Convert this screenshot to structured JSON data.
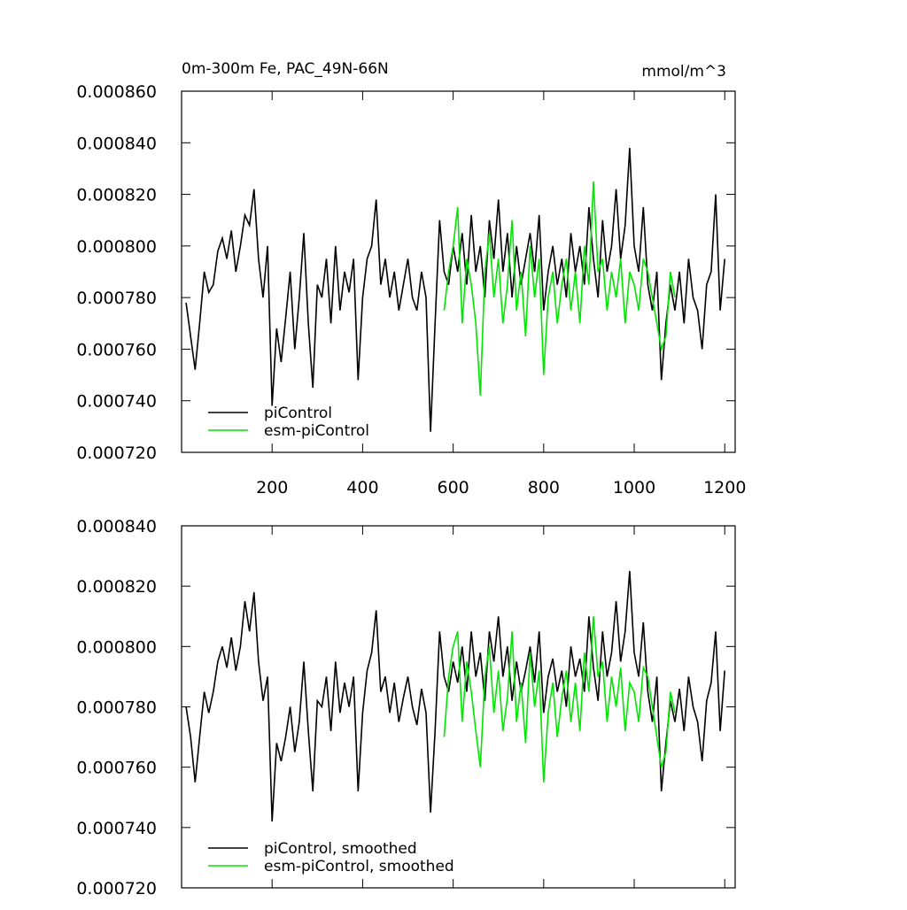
{
  "chart_data": [
    {
      "type": "line",
      "title": "0m-300m Fe, PAC_49N-66N",
      "units": "mmol/m^3",
      "xlim": [
        0,
        1223
      ],
      "xticks": [
        200,
        400,
        600,
        800,
        1000,
        1200
      ],
      "xtick_labels": true,
      "ylim": [
        0.00072,
        0.00086
      ],
      "yticks": [
        {
          "value": 0.00072,
          "label": "0.000720"
        },
        {
          "value": 0.00074,
          "label": "0.000740"
        },
        {
          "value": 0.00076,
          "label": "0.000760"
        },
        {
          "value": 0.00078,
          "label": "0.000780"
        },
        {
          "value": 0.0008,
          "label": "0.000800"
        },
        {
          "value": 0.00082,
          "label": "0.000820"
        },
        {
          "value": 0.00084,
          "label": "0.000840"
        },
        {
          "value": 0.00086,
          "label": "0.000860"
        }
      ],
      "legend": "lower left",
      "series": [
        {
          "name": "piControl",
          "color": "#000000",
          "x": [
            10,
            20,
            30,
            40,
            50,
            60,
            70,
            80,
            90,
            100,
            110,
            120,
            130,
            140,
            150,
            160,
            170,
            180,
            190,
            200,
            210,
            220,
            230,
            240,
            250,
            260,
            270,
            280,
            290,
            300,
            310,
            320,
            330,
            340,
            350,
            360,
            370,
            380,
            390,
            400,
            410,
            420,
            430,
            440,
            450,
            460,
            470,
            480,
            490,
            500,
            510,
            520,
            530,
            540,
            550,
            560,
            570,
            580,
            590,
            600,
            610,
            620,
            630,
            640,
            650,
            660,
            670,
            680,
            690,
            700,
            710,
            720,
            730,
            740,
            750,
            760,
            770,
            780,
            790,
            800,
            810,
            820,
            830,
            840,
            850,
            860,
            870,
            880,
            890,
            900,
            910,
            920,
            930,
            940,
            950,
            960,
            970,
            980,
            990,
            1000,
            1010,
            1020,
            1030,
            1040,
            1050,
            1060,
            1070,
            1080,
            1090,
            1100,
            1110,
            1120,
            1130,
            1140,
            1150,
            1160,
            1170,
            1180,
            1190,
            1200
          ],
          "values": [
            0.000778,
            0.000765,
            0.000752,
            0.00077,
            0.00079,
            0.000782,
            0.000785,
            0.000798,
            0.000803,
            0.000795,
            0.000806,
            0.00079,
            0.0008,
            0.000812,
            0.000808,
            0.000822,
            0.000795,
            0.00078,
            0.0008,
            0.000738,
            0.000768,
            0.000755,
            0.000772,
            0.00079,
            0.00076,
            0.00078,
            0.000805,
            0.00077,
            0.000745,
            0.000785,
            0.00078,
            0.000795,
            0.00077,
            0.0008,
            0.000775,
            0.00079,
            0.000782,
            0.000795,
            0.000748,
            0.00078,
            0.000795,
            0.0008,
            0.000818,
            0.000785,
            0.000795,
            0.00078,
            0.00079,
            0.000775,
            0.000785,
            0.000795,
            0.00078,
            0.000775,
            0.00079,
            0.00078,
            0.000728,
            0.00077,
            0.00081,
            0.00079,
            0.000785,
            0.0008,
            0.00079,
            0.000805,
            0.000785,
            0.000812,
            0.00079,
            0.0008,
            0.00078,
            0.00081,
            0.000795,
            0.000818,
            0.00079,
            0.000805,
            0.00078,
            0.0008,
            0.000785,
            0.000795,
            0.000805,
            0.00079,
            0.000812,
            0.000775,
            0.00079,
            0.0008,
            0.000785,
            0.000795,
            0.00078,
            0.000805,
            0.00079,
            0.0008,
            0.000785,
            0.000815,
            0.000795,
            0.00078,
            0.00081,
            0.00079,
            0.0008,
            0.000822,
            0.000795,
            0.000808,
            0.000838,
            0.0008,
            0.00079,
            0.000815,
            0.000785,
            0.000775,
            0.00079,
            0.000748,
            0.00077,
            0.000785,
            0.000775,
            0.00079,
            0.00077,
            0.000795,
            0.00078,
            0.000775,
            0.00076,
            0.000785,
            0.00079,
            0.00082,
            0.000775,
            0.000795
          ]
        },
        {
          "name": "esm-piControl",
          "color": "#00e600",
          "x": [
            580,
            590,
            600,
            610,
            620,
            630,
            640,
            650,
            660,
            670,
            680,
            690,
            700,
            710,
            720,
            730,
            740,
            750,
            760,
            770,
            780,
            790,
            800,
            810,
            820,
            830,
            840,
            850,
            860,
            870,
            880,
            890,
            900,
            910,
            920,
            930,
            940,
            950,
            960,
            970,
            980,
            990,
            1000,
            1010,
            1020,
            1030,
            1040,
            1050,
            1060,
            1070,
            1080,
            1090
          ],
          "values": [
            0.000775,
            0.00079,
            0.0008,
            0.000815,
            0.00077,
            0.000795,
            0.000785,
            0.00077,
            0.000742,
            0.00079,
            0.000805,
            0.00078,
            0.000795,
            0.00077,
            0.000785,
            0.00081,
            0.000775,
            0.00079,
            0.000765,
            0.0008,
            0.00078,
            0.000795,
            0.00075,
            0.00078,
            0.00079,
            0.00077,
            0.000785,
            0.000795,
            0.000775,
            0.00079,
            0.00077,
            0.0008,
            0.000785,
            0.000825,
            0.00079,
            0.000795,
            0.000775,
            0.00079,
            0.00078,
            0.000795,
            0.00077,
            0.00079,
            0.000785,
            0.000775,
            0.000795,
            0.00079,
            0.00078,
            0.00077,
            0.00076,
            0.000765,
            0.00079,
            0.00078
          ]
        }
      ]
    },
    {
      "type": "line",
      "xlim": [
        0,
        1223
      ],
      "xticks": [
        200,
        400,
        600,
        800,
        1000,
        1200
      ],
      "xtick_labels": false,
      "ylim": [
        0.00072,
        0.00084
      ],
      "yticks": [
        {
          "value": 0.00072,
          "label": "0.000720"
        },
        {
          "value": 0.00074,
          "label": "0.000740"
        },
        {
          "value": 0.00076,
          "label": "0.000760"
        },
        {
          "value": 0.00078,
          "label": "0.000780"
        },
        {
          "value": 0.0008,
          "label": "0.000800"
        },
        {
          "value": 0.00082,
          "label": "0.000820"
        },
        {
          "value": 0.00084,
          "label": "0.000840"
        }
      ],
      "legend": "lower left",
      "series": [
        {
          "name": "piControl, smoothed",
          "color": "#000000",
          "x": [
            10,
            20,
            30,
            40,
            50,
            60,
            70,
            80,
            90,
            100,
            110,
            120,
            130,
            140,
            150,
            160,
            170,
            180,
            190,
            200,
            210,
            220,
            230,
            240,
            250,
            260,
            270,
            280,
            290,
            300,
            310,
            320,
            330,
            340,
            350,
            360,
            370,
            380,
            390,
            400,
            410,
            420,
            430,
            440,
            450,
            460,
            470,
            480,
            490,
            500,
            510,
            520,
            530,
            540,
            550,
            560,
            570,
            580,
            590,
            600,
            610,
            620,
            630,
            640,
            650,
            660,
            670,
            680,
            690,
            700,
            710,
            720,
            730,
            740,
            750,
            760,
            770,
            780,
            790,
            800,
            810,
            820,
            830,
            840,
            850,
            860,
            870,
            880,
            890,
            900,
            910,
            920,
            930,
            940,
            950,
            960,
            970,
            980,
            990,
            1000,
            1010,
            1020,
            1030,
            1040,
            1050,
            1060,
            1070,
            1080,
            1090,
            1100,
            1110,
            1120,
            1130,
            1140,
            1150,
            1160,
            1170,
            1180,
            1190,
            1200
          ],
          "values": [
            0.00078,
            0.00077,
            0.000755,
            0.00077,
            0.000785,
            0.000778,
            0.000785,
            0.000795,
            0.0008,
            0.000793,
            0.000803,
            0.000792,
            0.0008,
            0.000815,
            0.000805,
            0.000818,
            0.000795,
            0.000782,
            0.00079,
            0.000742,
            0.000768,
            0.000762,
            0.00077,
            0.00078,
            0.000765,
            0.000775,
            0.000795,
            0.000772,
            0.000752,
            0.000782,
            0.00078,
            0.00079,
            0.000772,
            0.000795,
            0.000778,
            0.000788,
            0.00078,
            0.00079,
            0.000752,
            0.000778,
            0.000792,
            0.000798,
            0.000812,
            0.000785,
            0.00079,
            0.000778,
            0.000788,
            0.000775,
            0.000783,
            0.00079,
            0.00078,
            0.000774,
            0.000786,
            0.000778,
            0.000745,
            0.000772,
            0.000805,
            0.00079,
            0.000785,
            0.000795,
            0.000788,
            0.0008,
            0.000785,
            0.000805,
            0.00079,
            0.000798,
            0.000782,
            0.000805,
            0.000795,
            0.00081,
            0.00079,
            0.0008,
            0.000782,
            0.000795,
            0.000785,
            0.000792,
            0.0008,
            0.000788,
            0.000805,
            0.000778,
            0.00079,
            0.000796,
            0.000785,
            0.000792,
            0.00078,
            0.0008,
            0.00079,
            0.000796,
            0.000785,
            0.00081,
            0.000793,
            0.000782,
            0.000805,
            0.00079,
            0.000798,
            0.000815,
            0.000795,
            0.000805,
            0.000825,
            0.000798,
            0.00079,
            0.000808,
            0.000785,
            0.000775,
            0.00079,
            0.000752,
            0.000768,
            0.000782,
            0.000775,
            0.000786,
            0.000772,
            0.00079,
            0.00078,
            0.000775,
            0.000762,
            0.000782,
            0.000788,
            0.000805,
            0.000772,
            0.000792
          ]
        },
        {
          "name": "esm-piControl, smoothed",
          "color": "#00e600",
          "x": [
            580,
            590,
            600,
            610,
            620,
            630,
            640,
            650,
            660,
            670,
            680,
            690,
            700,
            710,
            720,
            730,
            740,
            750,
            760,
            770,
            780,
            790,
            800,
            810,
            820,
            830,
            840,
            850,
            860,
            870,
            880,
            890,
            900,
            910,
            920,
            930,
            940,
            950,
            960,
            970,
            980,
            990,
            1000,
            1010,
            1020,
            1030,
            1040,
            1050,
            1060,
            1070,
            1080,
            1090
          ],
          "values": [
            0.00077,
            0.00079,
            0.0008,
            0.000805,
            0.000775,
            0.000795,
            0.000785,
            0.000772,
            0.00076,
            0.00079,
            0.0008,
            0.000778,
            0.000792,
            0.000772,
            0.000783,
            0.000805,
            0.000775,
            0.000788,
            0.000768,
            0.000798,
            0.00078,
            0.000792,
            0.000755,
            0.000778,
            0.000788,
            0.00077,
            0.000783,
            0.000792,
            0.000775,
            0.000788,
            0.000772,
            0.000798,
            0.000785,
            0.00081,
            0.00079,
            0.000795,
            0.000775,
            0.00079,
            0.00078,
            0.000793,
            0.000772,
            0.000788,
            0.000785,
            0.000775,
            0.000793,
            0.00079,
            0.00078,
            0.00077,
            0.00076,
            0.000765,
            0.000785,
            0.000778
          ]
        }
      ]
    }
  ]
}
